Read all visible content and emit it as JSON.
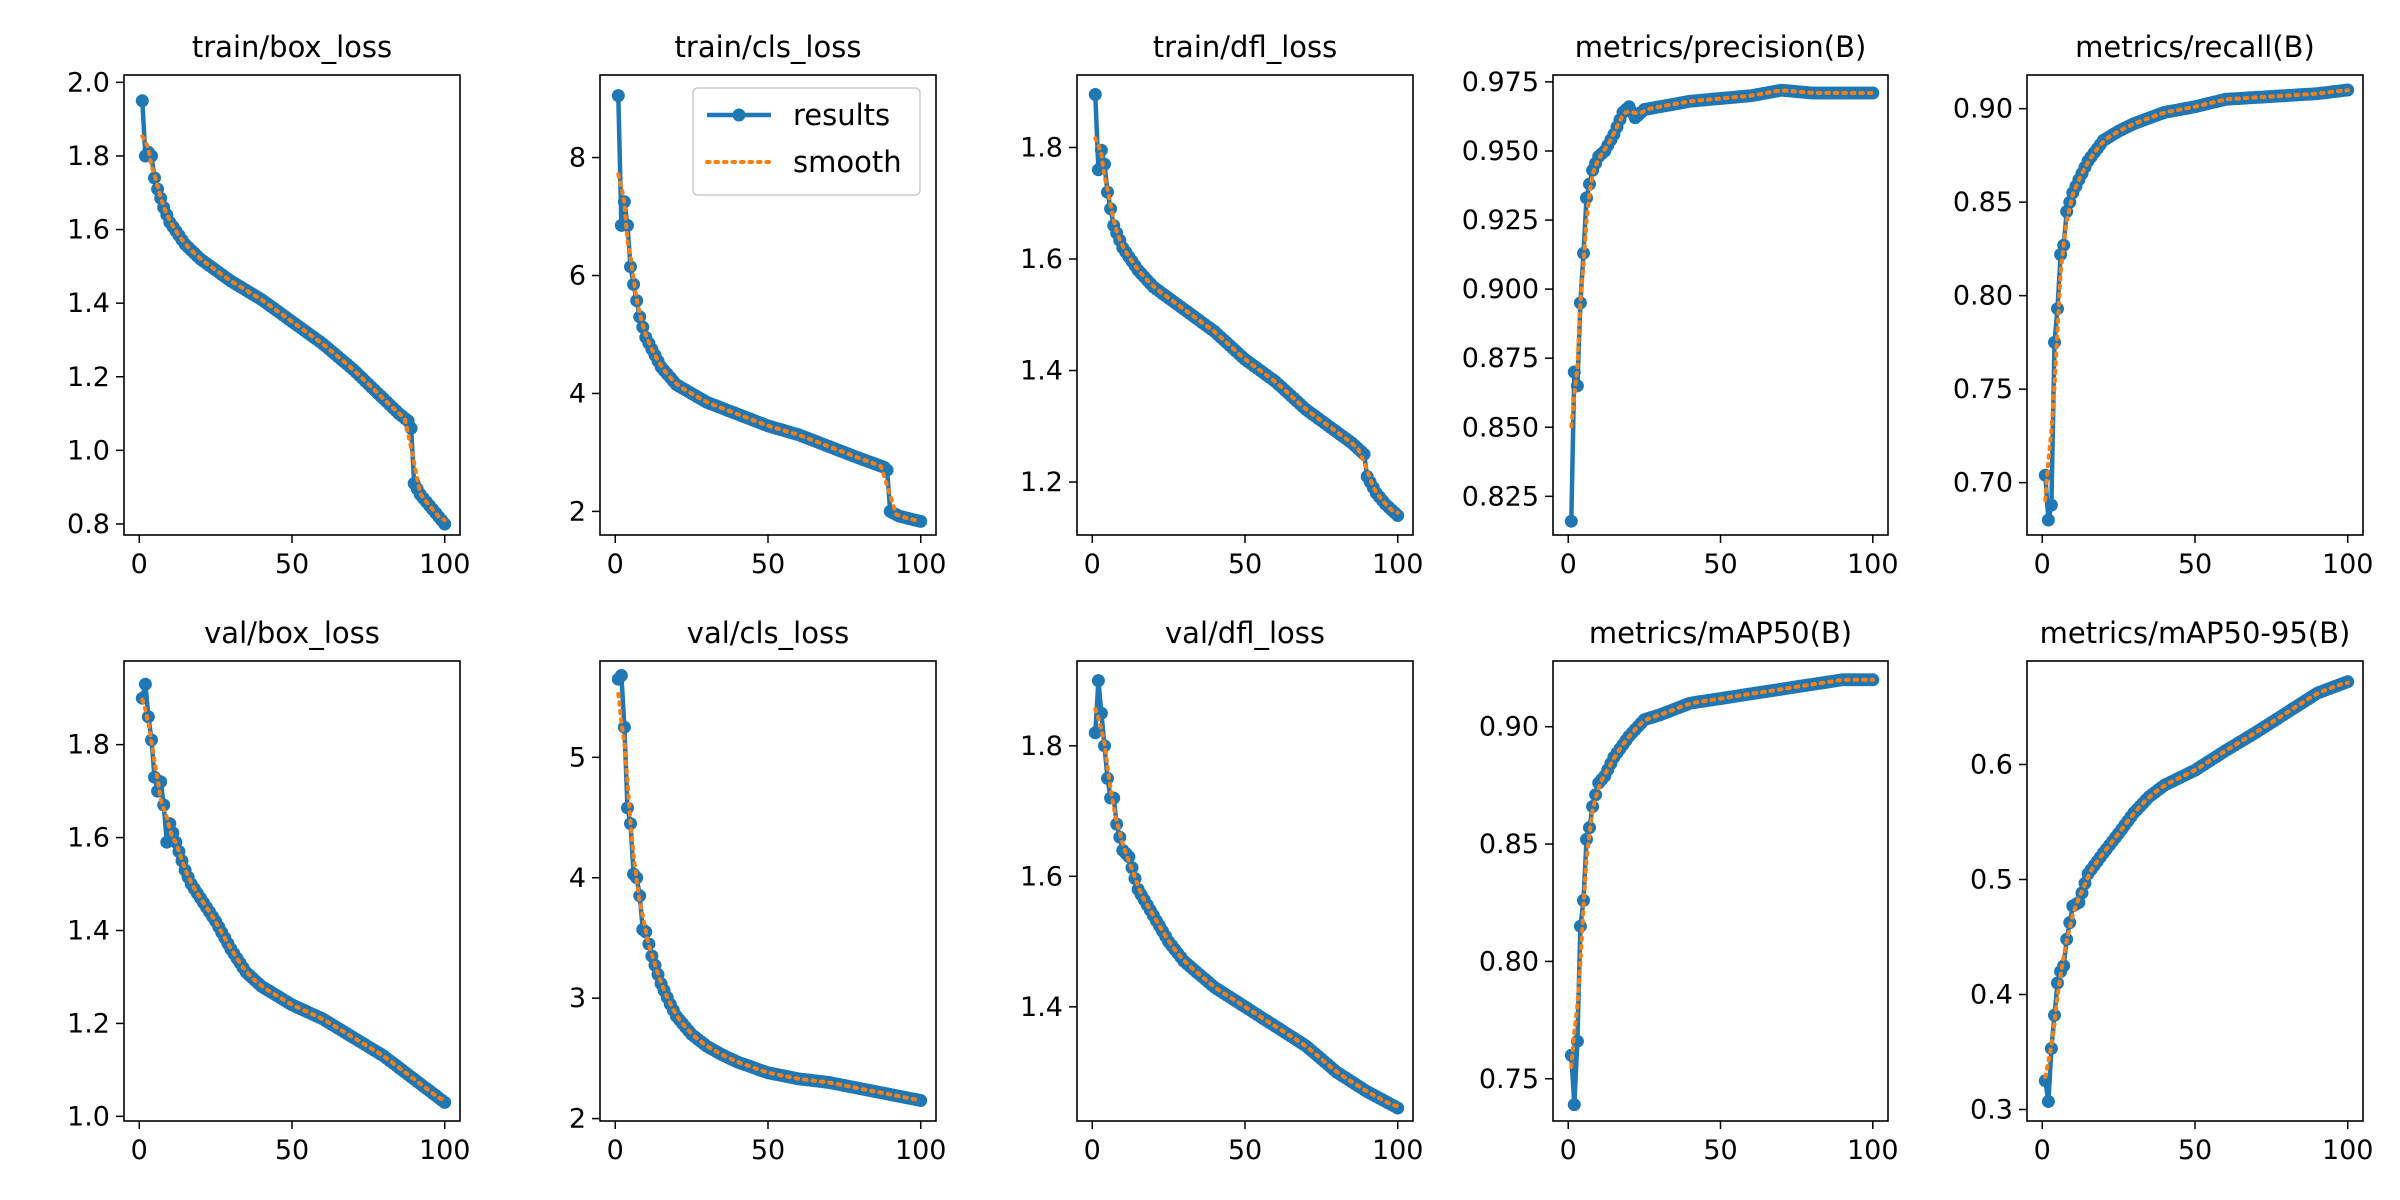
{
  "legend": {
    "labels": [
      "results",
      "smooth"
    ]
  },
  "colors": {
    "results": "#1f77b4",
    "smooth": "#ff7f0e"
  },
  "chart_data": [
    {
      "type": "line",
      "title": "train/box_loss",
      "xlim": [
        -5,
        105
      ],
      "ylim": [
        0.77,
        2.02
      ],
      "xticks": [
        "0",
        "50",
        "100"
      ],
      "yticks": [
        "0.8",
        "1.0",
        "1.2",
        "1.4",
        "1.6",
        "1.8",
        "2.0"
      ],
      "anchors": [
        [
          1,
          1.95
        ],
        [
          2,
          1.8
        ],
        [
          3,
          1.81
        ],
        [
          4,
          1.8
        ],
        [
          5,
          1.74
        ],
        [
          6,
          1.71
        ],
        [
          8,
          1.66
        ],
        [
          10,
          1.62
        ],
        [
          15,
          1.56
        ],
        [
          20,
          1.52
        ],
        [
          30,
          1.46
        ],
        [
          40,
          1.41
        ],
        [
          50,
          1.35
        ],
        [
          60,
          1.29
        ],
        [
          70,
          1.22
        ],
        [
          80,
          1.14
        ],
        [
          85,
          1.1
        ],
        [
          88,
          1.08
        ],
        [
          89,
          1.06
        ],
        [
          90,
          0.91
        ],
        [
          92,
          0.88
        ],
        [
          95,
          0.85
        ],
        [
          100,
          0.8
        ]
      ]
    },
    {
      "type": "line",
      "title": "train/cls_loss",
      "xlim": [
        -5,
        105
      ],
      "ylim": [
        1.6,
        9.4
      ],
      "xticks": [
        "0",
        "50",
        "100"
      ],
      "yticks": [
        "2",
        "4",
        "6",
        "8"
      ],
      "anchors": [
        [
          1,
          9.05
        ],
        [
          2,
          6.85
        ],
        [
          3,
          7.25
        ],
        [
          4,
          6.85
        ],
        [
          5,
          6.15
        ],
        [
          6,
          5.85
        ],
        [
          8,
          5.3
        ],
        [
          10,
          4.95
        ],
        [
          15,
          4.45
        ],
        [
          20,
          4.15
        ],
        [
          30,
          3.85
        ],
        [
          40,
          3.65
        ],
        [
          50,
          3.45
        ],
        [
          60,
          3.3
        ],
        [
          70,
          3.1
        ],
        [
          80,
          2.9
        ],
        [
          88,
          2.75
        ],
        [
          89,
          2.7
        ],
        [
          90,
          2.0
        ],
        [
          93,
          1.92
        ],
        [
          96,
          1.88
        ],
        [
          100,
          1.83
        ]
      ]
    },
    {
      "type": "line",
      "title": "train/dfl_loss",
      "xlim": [
        -5,
        105
      ],
      "ylim": [
        1.105,
        1.93
      ],
      "xticks": [
        "0",
        "50",
        "100"
      ],
      "yticks": [
        "1.2",
        "1.4",
        "1.6",
        "1.8"
      ],
      "anchors": [
        [
          1,
          1.895
        ],
        [
          2,
          1.76
        ],
        [
          3,
          1.795
        ],
        [
          4,
          1.77
        ],
        [
          5,
          1.72
        ],
        [
          7,
          1.66
        ],
        [
          10,
          1.62
        ],
        [
          15,
          1.58
        ],
        [
          20,
          1.55
        ],
        [
          30,
          1.51
        ],
        [
          40,
          1.47
        ],
        [
          50,
          1.42
        ],
        [
          60,
          1.38
        ],
        [
          70,
          1.33
        ],
        [
          80,
          1.29
        ],
        [
          85,
          1.27
        ],
        [
          89,
          1.25
        ],
        [
          90,
          1.21
        ],
        [
          93,
          1.18
        ],
        [
          96,
          1.16
        ],
        [
          100,
          1.14
        ]
      ]
    },
    {
      "type": "line",
      "title": "metrics/precision(B)",
      "xlim": [
        -5,
        105
      ],
      "ylim": [
        0.811,
        0.9775
      ],
      "xticks": [
        "0",
        "50",
        "100"
      ],
      "yticks": [
        "0.825",
        "0.850",
        "0.875",
        "0.900",
        "0.925",
        "0.950",
        "0.975"
      ],
      "anchors": [
        [
          1,
          0.816
        ],
        [
          2,
          0.87
        ],
        [
          3,
          0.865
        ],
        [
          4,
          0.895
        ],
        [
          5,
          0.913
        ],
        [
          6,
          0.933
        ],
        [
          8,
          0.943
        ],
        [
          10,
          0.948
        ],
        [
          12,
          0.95
        ],
        [
          15,
          0.956
        ],
        [
          18,
          0.964
        ],
        [
          20,
          0.966
        ],
        [
          22,
          0.962
        ],
        [
          25,
          0.965
        ],
        [
          30,
          0.966
        ],
        [
          40,
          0.968
        ],
        [
          50,
          0.969
        ],
        [
          60,
          0.97
        ],
        [
          70,
          0.972
        ],
        [
          80,
          0.971
        ],
        [
          90,
          0.971
        ],
        [
          100,
          0.971
        ]
      ]
    },
    {
      "type": "line",
      "title": "metrics/recall(B)",
      "xlim": [
        -5,
        105
      ],
      "ylim": [
        0.672,
        0.918
      ],
      "xticks": [
        "0",
        "50",
        "100"
      ],
      "yticks": [
        "0.70",
        "0.75",
        "0.80",
        "0.85",
        "0.90"
      ],
      "anchors": [
        [
          1,
          0.704
        ],
        [
          2,
          0.68
        ],
        [
          3,
          0.688
        ],
        [
          4,
          0.775
        ],
        [
          5,
          0.793
        ],
        [
          6,
          0.822
        ],
        [
          7,
          0.827
        ],
        [
          8,
          0.845
        ],
        [
          10,
          0.855
        ],
        [
          12,
          0.862
        ],
        [
          15,
          0.872
        ],
        [
          20,
          0.883
        ],
        [
          25,
          0.888
        ],
        [
          30,
          0.892
        ],
        [
          40,
          0.898
        ],
        [
          50,
          0.901
        ],
        [
          60,
          0.905
        ],
        [
          70,
          0.906
        ],
        [
          80,
          0.907
        ],
        [
          90,
          0.908
        ],
        [
          100,
          0.91
        ]
      ]
    },
    {
      "type": "line",
      "title": "val/box_loss",
      "xlim": [
        -5,
        105
      ],
      "ylim": [
        0.99,
        1.98
      ],
      "xticks": [
        "0",
        "50",
        "100"
      ],
      "yticks": [
        "1.0",
        "1.2",
        "1.4",
        "1.6",
        "1.8"
      ],
      "anchors": [
        [
          1,
          1.9
        ],
        [
          2,
          1.93
        ],
        [
          3,
          1.86
        ],
        [
          4,
          1.81
        ],
        [
          5,
          1.73
        ],
        [
          6,
          1.7
        ],
        [
          7,
          1.72
        ],
        [
          8,
          1.67
        ],
        [
          9,
          1.59
        ],
        [
          10,
          1.63
        ],
        [
          12,
          1.59
        ],
        [
          15,
          1.53
        ],
        [
          17,
          1.5
        ],
        [
          20,
          1.47
        ],
        [
          25,
          1.42
        ],
        [
          30,
          1.36
        ],
        [
          35,
          1.31
        ],
        [
          40,
          1.28
        ],
        [
          50,
          1.24
        ],
        [
          60,
          1.21
        ],
        [
          70,
          1.17
        ],
        [
          80,
          1.13
        ],
        [
          90,
          1.08
        ],
        [
          100,
          1.03
        ]
      ]
    },
    {
      "type": "line",
      "title": "val/cls_loss",
      "xlim": [
        -5,
        105
      ],
      "ylim": [
        1.98,
        5.8
      ],
      "xticks": [
        "0",
        "50",
        "100"
      ],
      "yticks": [
        "2",
        "3",
        "4",
        "5"
      ],
      "anchors": [
        [
          1,
          5.65
        ],
        [
          2,
          5.68
        ],
        [
          3,
          5.25
        ],
        [
          4,
          4.58
        ],
        [
          5,
          4.45
        ],
        [
          6,
          4.03
        ],
        [
          7,
          4.0
        ],
        [
          8,
          3.85
        ],
        [
          9,
          3.57
        ],
        [
          10,
          3.55
        ],
        [
          12,
          3.35
        ],
        [
          15,
          3.12
        ],
        [
          18,
          2.95
        ],
        [
          20,
          2.85
        ],
        [
          25,
          2.7
        ],
        [
          30,
          2.6
        ],
        [
          35,
          2.53
        ],
        [
          40,
          2.47
        ],
        [
          50,
          2.38
        ],
        [
          60,
          2.33
        ],
        [
          70,
          2.3
        ],
        [
          80,
          2.25
        ],
        [
          90,
          2.2
        ],
        [
          100,
          2.15
        ]
      ]
    },
    {
      "type": "line",
      "title": "val/dfl_loss",
      "xlim": [
        -5,
        105
      ],
      "ylim": [
        1.225,
        1.93
      ],
      "xticks": [
        "0",
        "50",
        "100"
      ],
      "yticks": [
        "1.4",
        "1.6",
        "1.8"
      ],
      "anchors": [
        [
          1,
          1.82
        ],
        [
          2,
          1.9
        ],
        [
          3,
          1.85
        ],
        [
          4,
          1.8
        ],
        [
          5,
          1.75
        ],
        [
          6,
          1.72
        ],
        [
          7,
          1.72
        ],
        [
          8,
          1.68
        ],
        [
          10,
          1.64
        ],
        [
          12,
          1.63
        ],
        [
          15,
          1.58
        ],
        [
          20,
          1.54
        ],
        [
          25,
          1.5
        ],
        [
          30,
          1.47
        ],
        [
          40,
          1.43
        ],
        [
          50,
          1.4
        ],
        [
          60,
          1.37
        ],
        [
          70,
          1.34
        ],
        [
          80,
          1.3
        ],
        [
          90,
          1.27
        ],
        [
          100,
          1.245
        ]
      ]
    },
    {
      "type": "line",
      "title": "metrics/mAP50(B)",
      "xlim": [
        -5,
        105
      ],
      "ylim": [
        0.732,
        0.928
      ],
      "xticks": [
        "0",
        "50",
        "100"
      ],
      "yticks": [
        "0.75",
        "0.80",
        "0.85",
        "0.90"
      ],
      "anchors": [
        [
          1,
          0.76
        ],
        [
          2,
          0.739
        ],
        [
          3,
          0.766
        ],
        [
          4,
          0.815
        ],
        [
          5,
          0.826
        ],
        [
          6,
          0.852
        ],
        [
          7,
          0.857
        ],
        [
          8,
          0.866
        ],
        [
          10,
          0.876
        ],
        [
          12,
          0.879
        ],
        [
          15,
          0.887
        ],
        [
          20,
          0.896
        ],
        [
          25,
          0.903
        ],
        [
          30,
          0.905
        ],
        [
          40,
          0.91
        ],
        [
          50,
          0.912
        ],
        [
          60,
          0.914
        ],
        [
          70,
          0.916
        ],
        [
          80,
          0.918
        ],
        [
          90,
          0.92
        ],
        [
          100,
          0.92
        ]
      ]
    },
    {
      "type": "line",
      "title": "metrics/mAP50-95(B)",
      "xlim": [
        -5,
        105
      ],
      "ylim": [
        0.29,
        0.69
      ],
      "xticks": [
        "0",
        "50",
        "100"
      ],
      "yticks": [
        "0.3",
        "0.4",
        "0.5",
        "0.6"
      ],
      "anchors": [
        [
          1,
          0.325
        ],
        [
          2,
          0.307
        ],
        [
          3,
          0.353
        ],
        [
          4,
          0.382
        ],
        [
          5,
          0.41
        ],
        [
          6,
          0.42
        ],
        [
          7,
          0.425
        ],
        [
          8,
          0.448
        ],
        [
          10,
          0.477
        ],
        [
          12,
          0.48
        ],
        [
          15,
          0.505
        ],
        [
          20,
          0.523
        ],
        [
          25,
          0.54
        ],
        [
          30,
          0.558
        ],
        [
          35,
          0.572
        ],
        [
          40,
          0.582
        ],
        [
          50,
          0.595
        ],
        [
          60,
          0.612
        ],
        [
          70,
          0.628
        ],
        [
          80,
          0.645
        ],
        [
          90,
          0.662
        ],
        [
          100,
          0.672
        ]
      ]
    }
  ]
}
